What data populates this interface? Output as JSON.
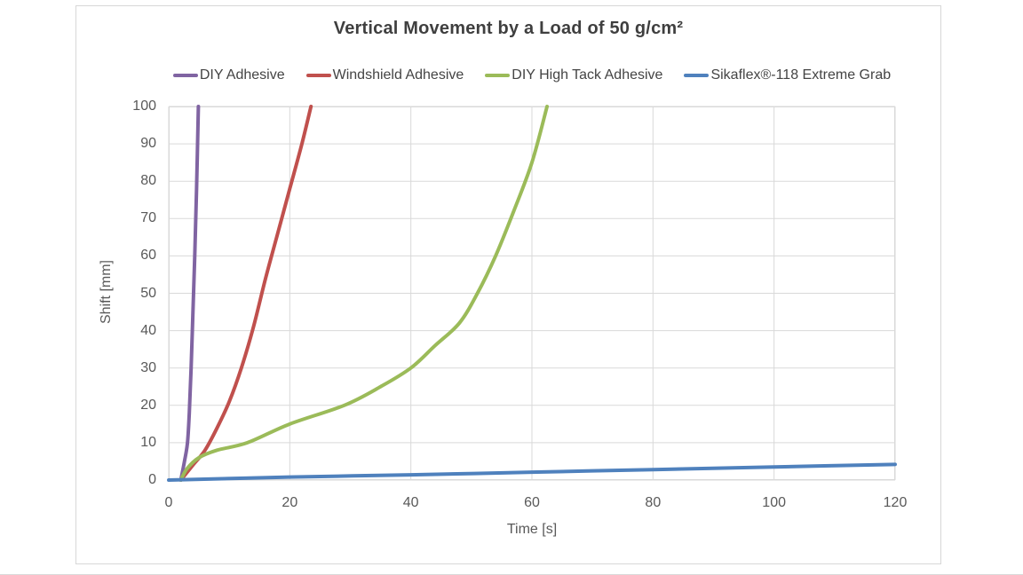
{
  "title": "Vertical Movement by a Load of 50 g/cm²",
  "colors": {
    "grid": "#d9d9d9",
    "plot_border": "#d9d9d9",
    "text": "#595959",
    "title_text": "#3f3f3f"
  },
  "chart_data": {
    "type": "line",
    "title": "Vertical Movement by a Load of 50 g/cm²",
    "xlabel": "Time [s]",
    "ylabel": "Shift [mm]",
    "xlim": [
      0,
      120
    ],
    "ylim": [
      0,
      100
    ],
    "x_ticks": [
      0,
      20,
      40,
      60,
      80,
      100,
      120
    ],
    "y_ticks": [
      0,
      10,
      20,
      30,
      40,
      50,
      60,
      70,
      80,
      90,
      100
    ],
    "grid": "on",
    "legend_position": "top",
    "line_width": 4,
    "series": [
      {
        "name": "DIY Adhesive",
        "color": "#8064A2",
        "points": [
          [
            2,
            0
          ],
          [
            2.6,
            5
          ],
          [
            3.1,
            10
          ],
          [
            3.4,
            18
          ],
          [
            3.7,
            30
          ],
          [
            4.0,
            45
          ],
          [
            4.3,
            60
          ],
          [
            4.6,
            78
          ],
          [
            4.9,
            100
          ]
        ]
      },
      {
        "name": "Windshield Adhesive",
        "color": "#C0504D",
        "points": [
          [
            2,
            0
          ],
          [
            4,
            4
          ],
          [
            6,
            8
          ],
          [
            8,
            14
          ],
          [
            10,
            21
          ],
          [
            12,
            30
          ],
          [
            14,
            41
          ],
          [
            16,
            54
          ],
          [
            18,
            66
          ],
          [
            20,
            78
          ],
          [
            22,
            90
          ],
          [
            23.5,
            100
          ]
        ]
      },
      {
        "name": "DIY High Tack Adhesive",
        "color": "#9BBB59",
        "points": [
          [
            2,
            0
          ],
          [
            3,
            3
          ],
          [
            5,
            6
          ],
          [
            8,
            8
          ],
          [
            13,
            10
          ],
          [
            20,
            15
          ],
          [
            29,
            20
          ],
          [
            35,
            25
          ],
          [
            40,
            30
          ],
          [
            44,
            36
          ],
          [
            48,
            42
          ],
          [
            51,
            50
          ],
          [
            54,
            60
          ],
          [
            57,
            72
          ],
          [
            60,
            85
          ],
          [
            62.5,
            100
          ]
        ]
      },
      {
        "name": "Sikaflex®-118 Extreme Grab",
        "color": "#4F81BD",
        "points": [
          [
            0,
            0
          ],
          [
            20,
            0.8
          ],
          [
            40,
            1.4
          ],
          [
            60,
            2.1
          ],
          [
            80,
            2.8
          ],
          [
            100,
            3.5
          ],
          [
            120,
            4.2
          ]
        ]
      }
    ]
  }
}
